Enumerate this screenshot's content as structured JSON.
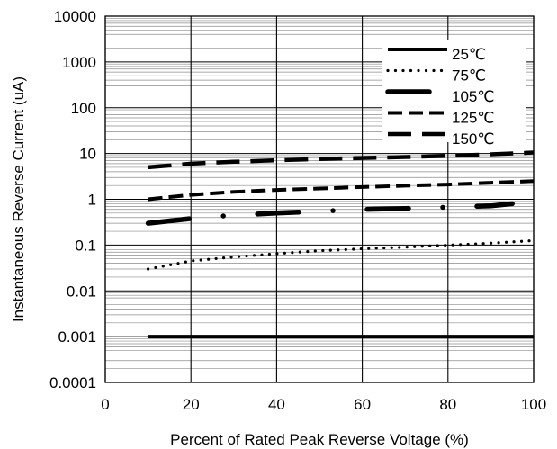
{
  "chart_data": {
    "type": "line",
    "title": "",
    "xlabel": "Percent of Rated Peak Reverse Voltage (%)",
    "ylabel": "Instantaneous Reverse Current (uA)",
    "x_scale": "linear",
    "y_scale": "log",
    "xlim": [
      0,
      100
    ],
    "ylim": [
      0.0001,
      10000
    ],
    "x_ticks": [
      "0",
      "20",
      "40",
      "60",
      "80",
      "100"
    ],
    "y_ticks": [
      "0.0001",
      "0.001",
      "0.01",
      "0.1",
      "1",
      "10",
      "100",
      "1000",
      "10000"
    ],
    "grid": true,
    "legend_position": "top-right",
    "series": [
      {
        "name": "25℃",
        "style": "solid",
        "x": [
          10,
          100
        ],
        "values": [
          0.001,
          0.001
        ]
      },
      {
        "name": "75℃",
        "style": "dotted",
        "x": [
          10,
          20,
          30,
          40,
          50,
          60,
          70,
          80,
          90,
          100
        ],
        "values": [
          0.03,
          0.045,
          0.055,
          0.065,
          0.075,
          0.083,
          0.09,
          0.1,
          0.11,
          0.125
        ]
      },
      {
        "name": "105℃",
        "style": "dashdot",
        "x": [
          10,
          20,
          30,
          40,
          50,
          60,
          70,
          80,
          90,
          95
        ],
        "values": [
          0.3,
          0.38,
          0.45,
          0.5,
          0.55,
          0.6,
          0.63,
          0.67,
          0.72,
          0.8
        ]
      },
      {
        "name": "125℃",
        "style": "dashed-short",
        "x": [
          10,
          20,
          30,
          40,
          50,
          60,
          70,
          80,
          90,
          100
        ],
        "values": [
          1.0,
          1.25,
          1.45,
          1.6,
          1.72,
          1.85,
          1.98,
          2.1,
          2.3,
          2.5
        ]
      },
      {
        "name": "150℃",
        "style": "dashed-long",
        "x": [
          10,
          20,
          30,
          40,
          50,
          60,
          70,
          80,
          90,
          100
        ],
        "values": [
          5.0,
          6.0,
          6.6,
          7.1,
          7.6,
          8.0,
          8.4,
          8.9,
          9.6,
          10.5
        ]
      }
    ]
  }
}
